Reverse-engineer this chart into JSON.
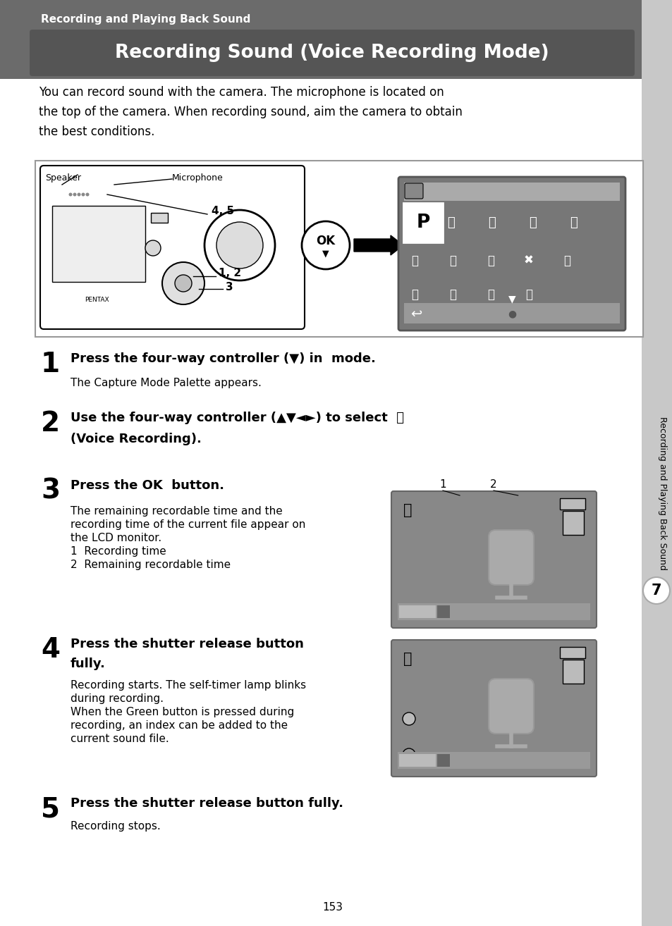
{
  "bg_color": "#ffffff",
  "header_bg": "#6b6b6b",
  "header_sub": "Recording and Playing Back Sound",
  "header_main": "Recording Sound (Voice Recording Mode)",
  "intro_text": "You can record sound with the camera. The microphone is located on\nthe top of the camera. When recording sound, aim the camera to obtain\nthe best conditions.",
  "step1_desc": "The Capture Mode Palette appears.",
  "step3_desc_lines": [
    "The remaining recordable time and the",
    "recording time of the current file appear on",
    "the LCD monitor.",
    "1  Recording time",
    "2  Remaining recordable time"
  ],
  "step4_desc_lines": [
    "Recording starts. The self-timer lamp blinks",
    "during recording.",
    "When the Green button is pressed during",
    "recording, an index can be added to the",
    "current sound file."
  ],
  "step5_desc": "Recording stops.",
  "sidebar_text": "Recording and Playing Back Sound",
  "page_num": "153",
  "tab_num": "7",
  "header_bg_color": "#6b6b6b",
  "title_box_color": "#555555",
  "sidebar_color": "#c8c8c8",
  "screen_bg": "#777777",
  "screen_bar": "#aaaaaa",
  "screen_bot": "#999999",
  "thumb_bg": "#888888",
  "thumb_bar": "#999999",
  "mic_color": "#aaaaaa"
}
